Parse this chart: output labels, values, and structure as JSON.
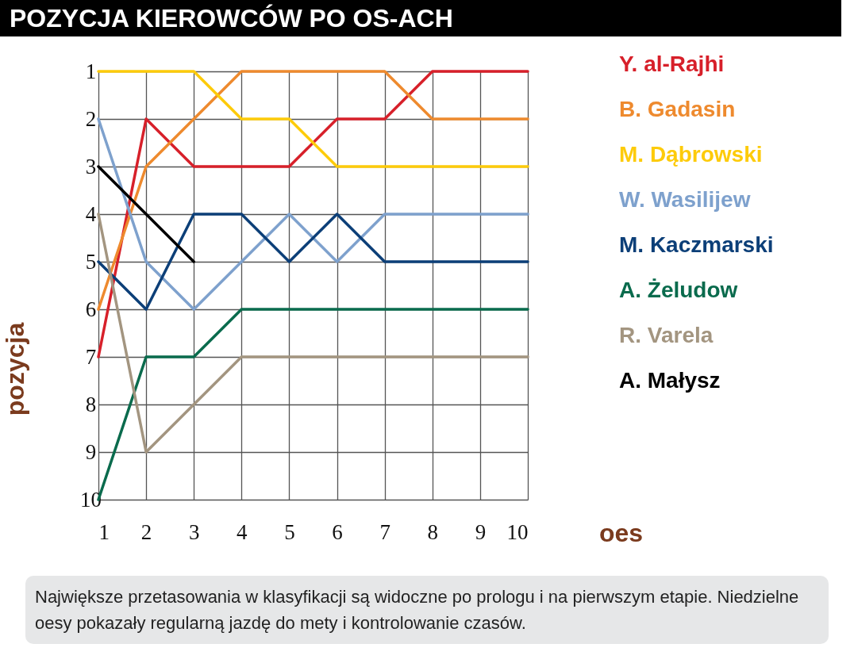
{
  "chart_data": {
    "type": "line",
    "title": "POZYCJA KIEROWCÓW PO OS-ACH",
    "xlabel": "oes",
    "ylabel": "pozycja",
    "x": [
      1,
      2,
      3,
      4,
      5,
      6,
      7,
      8,
      9,
      10
    ],
    "xlim": [
      1,
      10
    ],
    "xticks": [
      1,
      2,
      3,
      4,
      5,
      6,
      7,
      8,
      9,
      10
    ],
    "ylim": [
      10,
      1
    ],
    "yticks": [
      1,
      2,
      3,
      4,
      5,
      6,
      7,
      8,
      9,
      10
    ],
    "grid": true,
    "legend": "right",
    "marker": "none",
    "line_style": "solid",
    "series": [
      {
        "name": "Y. al-Rajhi",
        "color": "#d7202a",
        "values": [
          7,
          2,
          3,
          3,
          3,
          2,
          2,
          1,
          1,
          1
        ]
      },
      {
        "name": "B. Gadasin",
        "color": "#ee8a2e",
        "values": [
          6,
          3,
          2,
          1,
          1,
          1,
          1,
          2,
          2,
          2
        ]
      },
      {
        "name": "M. Dąbrowski",
        "color": "#fdcb0a",
        "values": [
          1,
          1,
          1,
          2,
          2,
          3,
          3,
          3,
          3,
          3
        ]
      },
      {
        "name": "W. Wasilijew",
        "color": "#7ea1cd",
        "values": [
          2,
          5,
          6,
          5,
          4,
          5,
          4,
          4,
          4,
          4
        ]
      },
      {
        "name": "M. Kaczmarski",
        "color": "#0c3f78",
        "values": [
          5,
          6,
          4,
          4,
          5,
          4,
          5,
          5,
          5,
          5
        ]
      },
      {
        "name": "A. Żeludow",
        "color": "#0a6b4d",
        "values": [
          10,
          7,
          7,
          6,
          6,
          6,
          6,
          6,
          6,
          6
        ]
      },
      {
        "name": "R. Varela",
        "color": "#a39580",
        "values": [
          4,
          9,
          8,
          7,
          7,
          7,
          7,
          7,
          7,
          7
        ]
      },
      {
        "name": "A. Małysz",
        "color": "#000000",
        "values": [
          3,
          4,
          5,
          null,
          null,
          null,
          null,
          null,
          null,
          null
        ]
      }
    ],
    "annotations": [
      "Największe przetasowania w klasyfikacji są widoczne po prologu i na pierwszym etapie. Niedzielne oesy pokazały regularną jazdę do mety i kontrolowanie czasów."
    ]
  }
}
